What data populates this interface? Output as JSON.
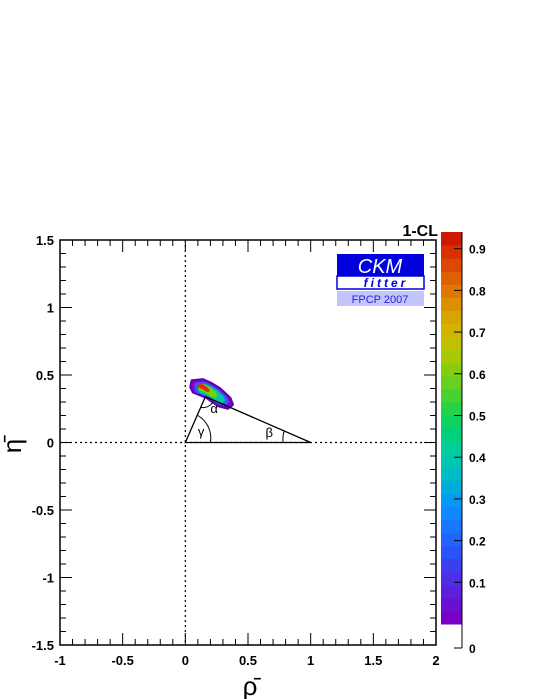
{
  "chart_data": {
    "type": "heatmap",
    "title": "",
    "xlabel": "ρ̄",
    "ylabel": "η̄",
    "xlim": [
      -1,
      2
    ],
    "ylim": [
      -1.5,
      1.5
    ],
    "x_ticks": [
      "-1",
      "-0.5",
      "0",
      "0.5",
      "1",
      "1.5",
      "2"
    ],
    "y_ticks": [
      "-1.5",
      "-1",
      "-0.5",
      "0",
      "0.5",
      "1",
      "1.5"
    ],
    "grid": false,
    "reference_lines": [
      {
        "orientation": "vertical",
        "x": 0,
        "style": "dotted"
      },
      {
        "orientation": "horizontal",
        "y": 0,
        "style": "dotted"
      }
    ],
    "unitarity_triangle": {
      "vertices": [
        [
          0,
          0
        ],
        [
          1,
          0
        ],
        [
          0.16,
          0.34
        ]
      ],
      "angle_labels": {
        "alpha": "α",
        "beta": "β",
        "gamma": "γ"
      }
    },
    "confidence_region": {
      "description": "1-CL region around apex",
      "outline": [
        [
          0.05,
          0.46
        ],
        [
          0.14,
          0.47
        ],
        [
          0.21,
          0.44
        ],
        [
          0.28,
          0.4
        ],
        [
          0.36,
          0.33
        ],
        [
          0.38,
          0.28
        ],
        [
          0.34,
          0.25
        ],
        [
          0.26,
          0.27
        ],
        [
          0.17,
          0.33
        ],
        [
          0.06,
          0.37
        ],
        [
          0.04,
          0.41
        ]
      ],
      "contours": [
        {
          "level": 0.1,
          "color": "#8b00c8"
        },
        {
          "level": 0.3,
          "color": "#2a5cff"
        },
        {
          "level": 0.5,
          "color": "#00c8a0"
        },
        {
          "level": 0.7,
          "color": "#7ad200"
        },
        {
          "level": 0.9,
          "color": "#e03000"
        }
      ]
    },
    "colorbar": {
      "title": "1-CL",
      "range": [
        0,
        1
      ],
      "tick_labels": [
        "0",
        "0.1",
        "0.2",
        "0.3",
        "0.4",
        "0.5",
        "0.6",
        "0.7",
        "0.8",
        "0.9"
      ],
      "colors": [
        "#7a00c8",
        "#6a10d2",
        "#5a20dc",
        "#4a30e6",
        "#3a40f0",
        "#2c52fa",
        "#2164ff",
        "#1876ff",
        "#1088ff",
        "#089af0",
        "#00acd8",
        "#00bcc4",
        "#00c8b0",
        "#00d098",
        "#00d07c",
        "#10d060",
        "#28d248",
        "#48d230",
        "#68d020",
        "#88cc10",
        "#a8c808",
        "#c0c000",
        "#d0b400",
        "#d8a400",
        "#dc9000",
        "#de7800",
        "#de6000",
        "#dc4800",
        "#d83000",
        "#d01800"
      ]
    }
  },
  "logo": {
    "line1": "CKM",
    "line2": "fitter",
    "caption": "FPCP 2007",
    "colors": {
      "primary": "#0000dd",
      "caption_bg": "#c4c4ff",
      "caption_text": "#2222dd"
    }
  }
}
